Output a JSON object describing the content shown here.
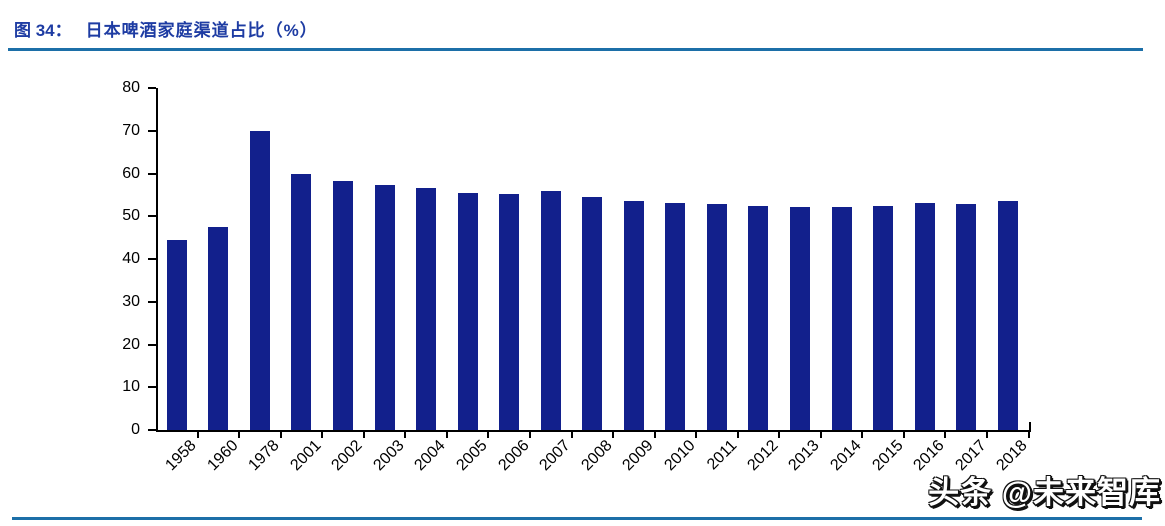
{
  "figure": {
    "label": "图 34：",
    "title": "日本啤酒家庭渠道占比（%）"
  },
  "watermark": "头条 @未来智库",
  "colors": {
    "bar": "#12208C",
    "title_text": "#1E3CA3",
    "divider": "#1C6FA8",
    "axis": "#000000"
  },
  "chart_data": {
    "type": "bar",
    "title": "日本啤酒家庭渠道占比（%）",
    "categories": [
      "1958",
      "1960",
      "1978",
      "2001",
      "2002",
      "2003",
      "2004",
      "2005",
      "2006",
      "2007",
      "2008",
      "2009",
      "2010",
      "2011",
      "2012",
      "2013",
      "2014",
      "2015",
      "2016",
      "2017",
      "2018"
    ],
    "values": [
      44.5,
      47.5,
      70,
      60,
      58.2,
      57.4,
      56.5,
      55.4,
      55.2,
      56,
      54.4,
      53.5,
      53,
      52.8,
      52.5,
      52.1,
      52.2,
      52.5,
      53.1,
      52.9,
      53.6
    ],
    "xlabel": "",
    "ylabel": "",
    "ylim": [
      0,
      80
    ],
    "yticks": [
      0,
      10,
      20,
      30,
      40,
      50,
      60,
      70,
      80
    ],
    "grid": false,
    "legend": false,
    "x_tick_rotation": 45,
    "bar_color": "#12208C"
  }
}
